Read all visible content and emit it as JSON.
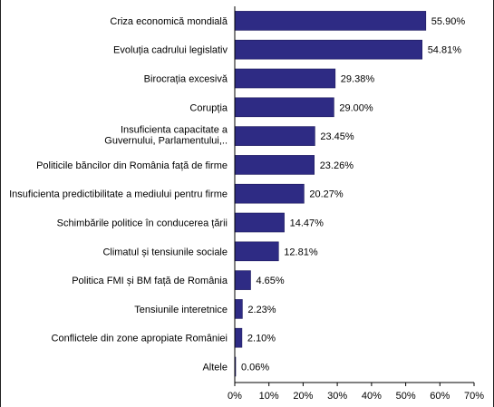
{
  "chart_data": {
    "type": "bar",
    "orientation": "horizontal",
    "categories": [
      [
        "Criza economică mondială"
      ],
      [
        "Evoluția cadrului legislativ"
      ],
      [
        "Birocrația excesivă"
      ],
      [
        "Corupția"
      ],
      [
        "Insuficienta  capacitate a",
        "Guvernului, Parlamentului,.."
      ],
      [
        "Politicile băncilor din România față de firme"
      ],
      [
        "Insuficienta predictibilitate a mediului pentru firme"
      ],
      [
        "Schimbările politice în conducerea țării"
      ],
      [
        "Climatul și tensiunile sociale"
      ],
      [
        "Politica FMI și BM față de România"
      ],
      [
        "Tensiunile interetnice"
      ],
      [
        "Conflictele din zone apropiate României"
      ],
      [
        "Altele"
      ]
    ],
    "values": [
      55.9,
      54.81,
      29.38,
      29.0,
      23.45,
      23.26,
      20.27,
      14.47,
      12.81,
      4.65,
      2.23,
      2.1,
      0.06
    ],
    "value_labels": [
      "55.90%",
      "54.81%",
      "29.38%",
      "29.00%",
      "23.45%",
      "23.26%",
      "20.27%",
      "14.47%",
      "12.81%",
      "4.65%",
      "2.23%",
      "2.10%",
      "0.06%"
    ],
    "xlim": [
      0,
      70
    ],
    "xticks": [
      "0%",
      "10%",
      "20%",
      "30%",
      "40%",
      "50%",
      "60%",
      "70%"
    ],
    "title": "",
    "xlabel": "",
    "ylabel": "",
    "grid": false,
    "bar_color": "#2e2b84",
    "bar_border_color": "#1d1a5e"
  }
}
